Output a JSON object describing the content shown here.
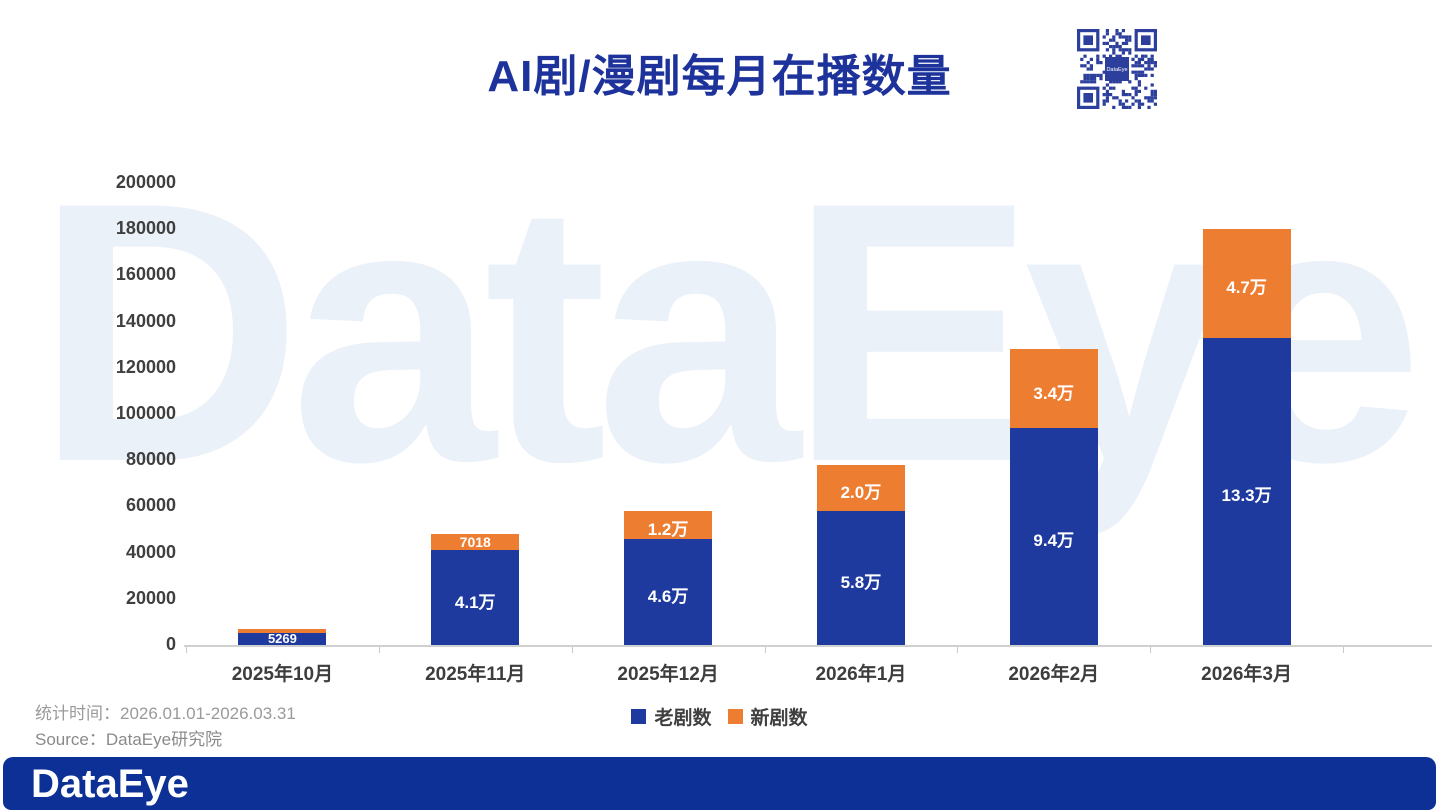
{
  "title_color": "#1d339b",
  "watermark": {
    "text": "DataEye"
  },
  "qr": {
    "center_label": "DataEye",
    "module_color": "#2c3f9c"
  },
  "chart_data": {
    "type": "bar",
    "stacked": true,
    "title": "AI剧/漫剧每月在播数量",
    "xlabel": "",
    "ylabel": "",
    "ylim": [
      0,
      200000
    ],
    "ytick_step": 20000,
    "grid": false,
    "legend_position": "bottom",
    "categories": [
      "2025年10月",
      "2025年11月",
      "2025年12月",
      "2026年1月",
      "2026年2月",
      "2026年3月"
    ],
    "series": [
      {
        "name": "老剧数",
        "color": "#1e3a9e",
        "values": [
          5269,
          41000,
          46000,
          58000,
          94000,
          133000
        ],
        "labels": [
          "5269",
          "4.1万",
          "4.6万",
          "5.8万",
          "9.4万",
          "13.3万"
        ]
      },
      {
        "name": "新剧数",
        "color": "#ed7d31",
        "values": [
          1800,
          7018,
          12000,
          20000,
          34000,
          47000
        ],
        "labels": [
          "",
          "7018",
          "1.2万",
          "2.0万",
          "3.4万",
          "4.7万"
        ]
      }
    ]
  },
  "footnotes": {
    "stat_time": "统计时间：2026.01.01-2026.03.31",
    "source": "Source：DataEye研究院"
  },
  "footer": {
    "logo_text": "DataEye"
  }
}
